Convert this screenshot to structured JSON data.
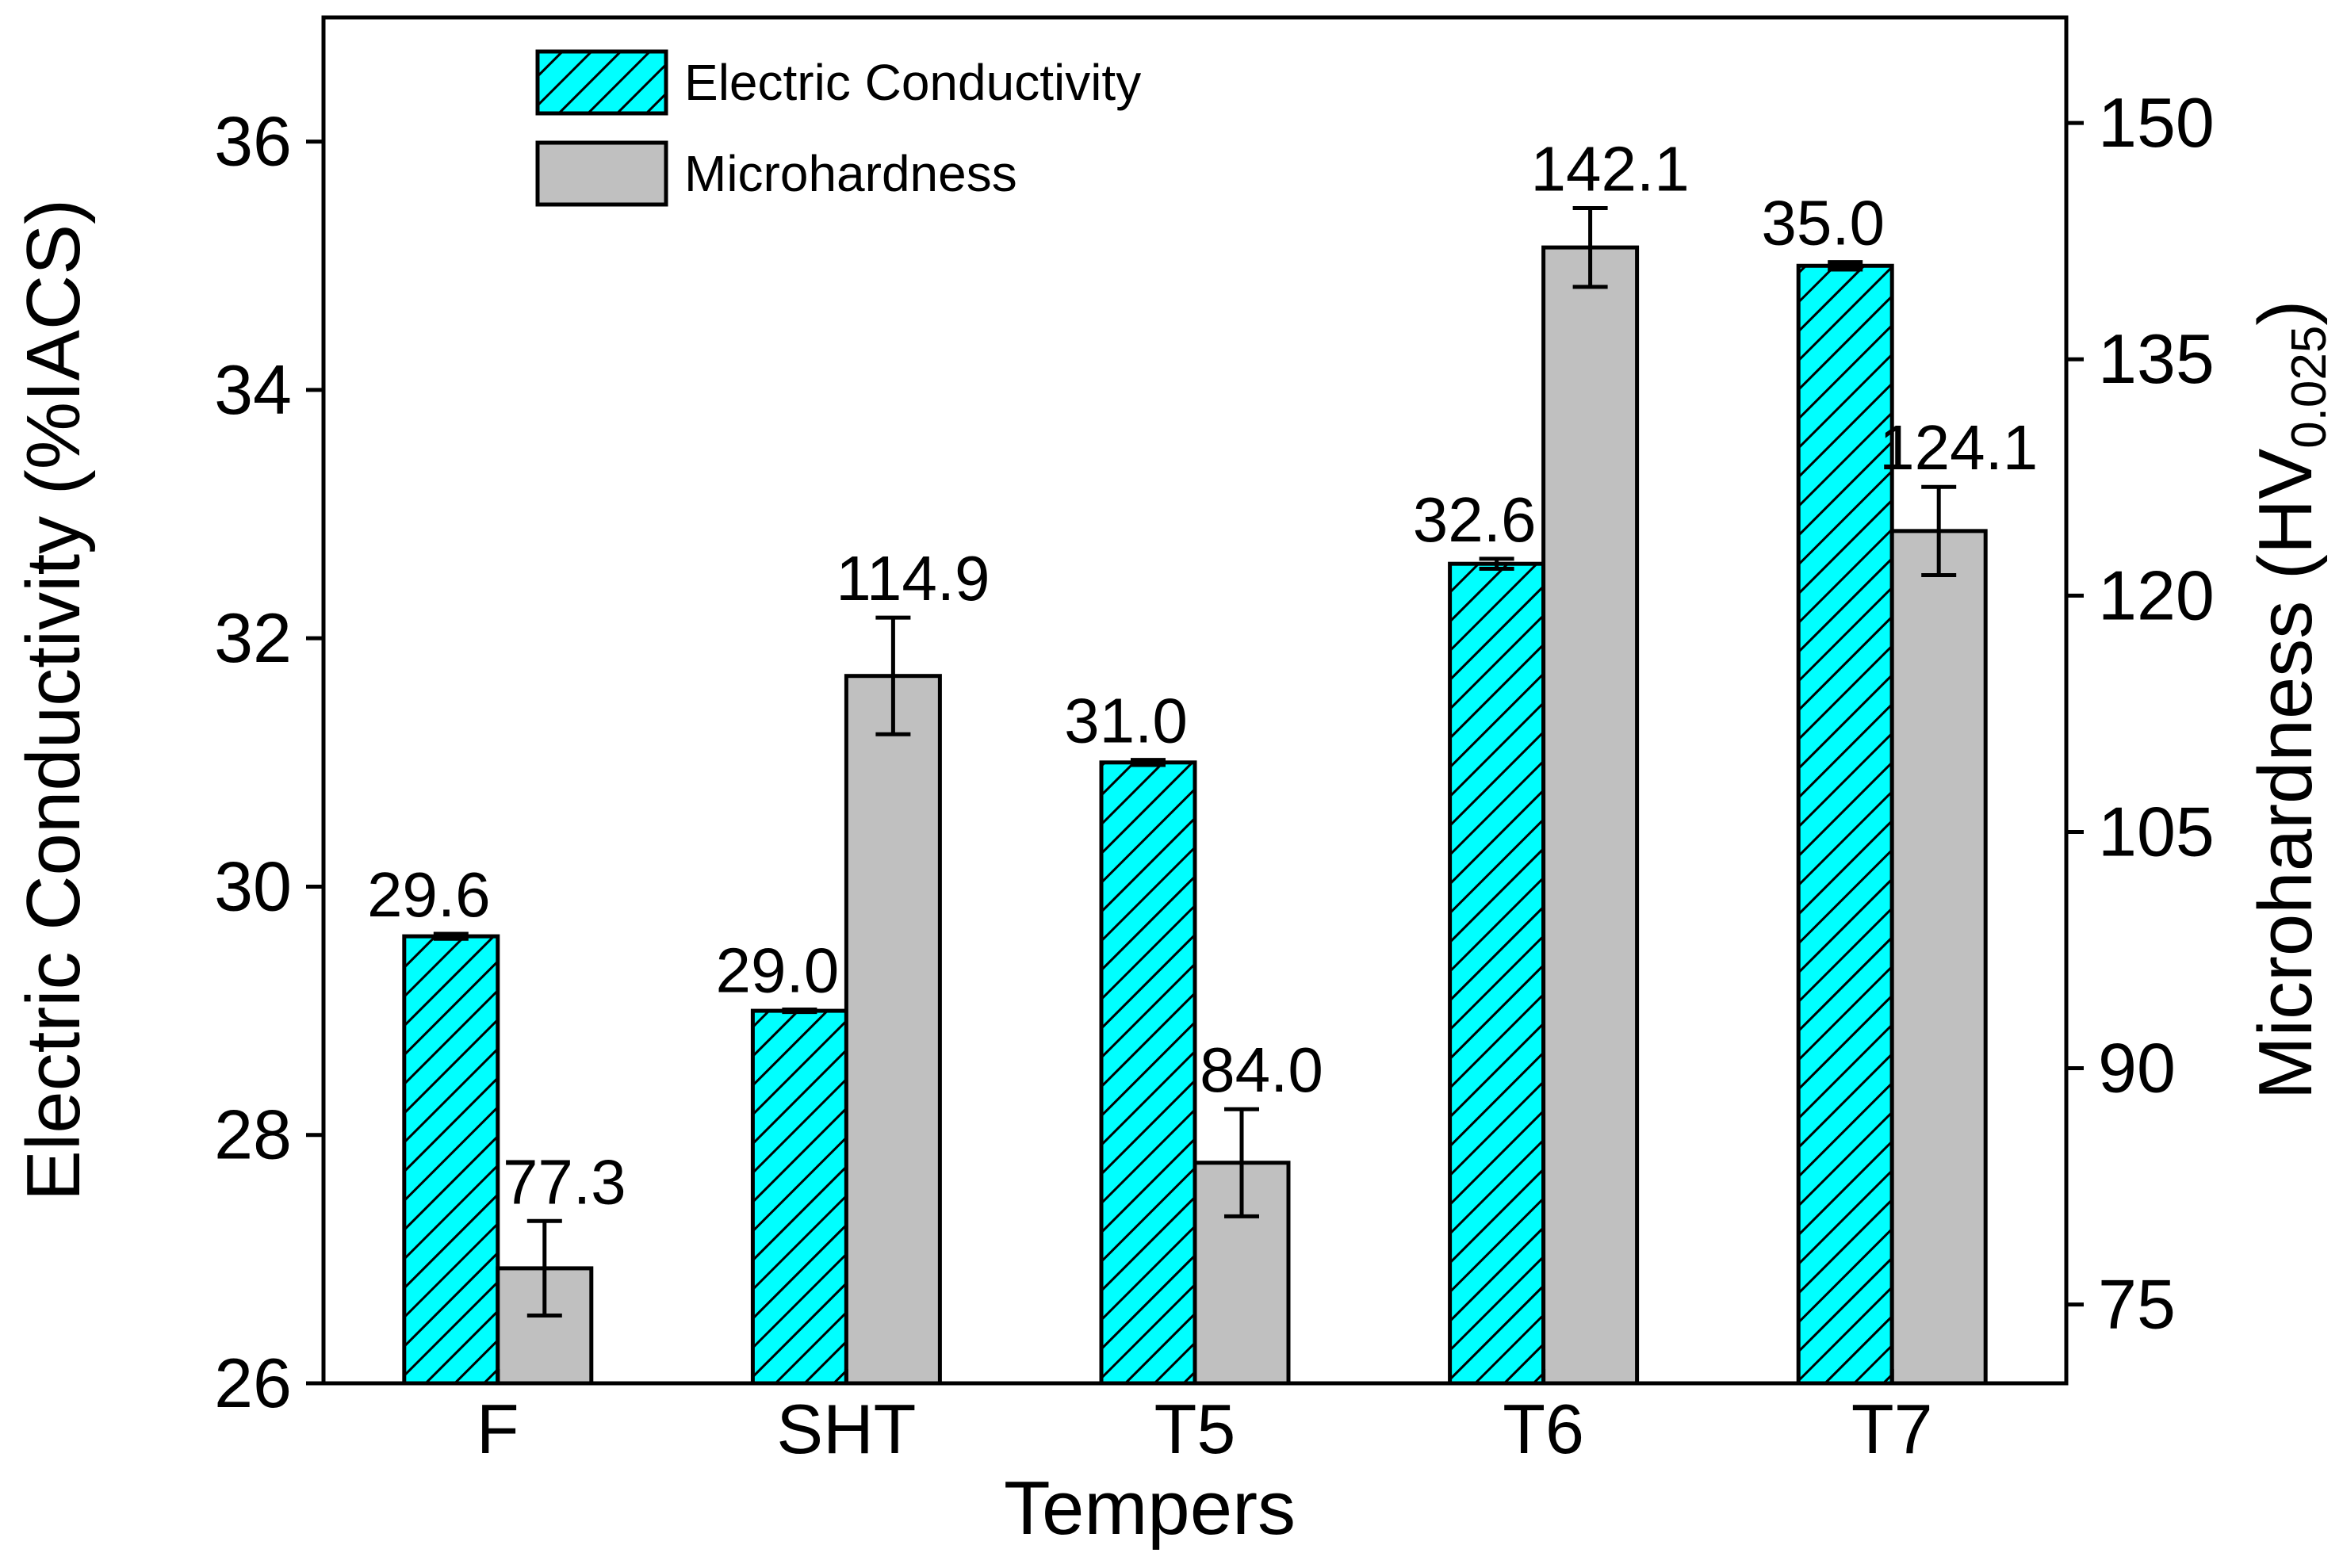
{
  "chart_data": {
    "type": "bar",
    "title": "",
    "xlabel": "Tempers",
    "ylabel": "Electric Conductivity (%IACS)",
    "y2label": {
      "main": "Microhardness (HV",
      "sub": "0.025",
      "close": ")"
    },
    "categories": [
      "F",
      "SHT",
      "T5",
      "T6",
      "T7"
    ],
    "ylim": [
      26,
      37
    ],
    "yticks": [
      26,
      28,
      30,
      32,
      34,
      36
    ],
    "y2lim": [
      70,
      156.7
    ],
    "y2ticks": [
      75,
      90,
      105,
      120,
      135,
      150
    ],
    "legend_position": "top-left",
    "series": [
      {
        "name": "Electric Conductivity",
        "axis": "left",
        "fill": "hatched",
        "color": "#00ffff",
        "values": [
          29.6,
          29.0,
          31.0,
          32.6,
          35.0
        ],
        "labels": [
          "29.6",
          "29.0",
          "31.0",
          "32.6",
          "35.0"
        ],
        "errors": [
          0.02,
          0.01,
          0.02,
          0.04,
          0.03
        ]
      },
      {
        "name": "Microhardness",
        "axis": "right",
        "fill": "solid",
        "color": "#c0c0c0",
        "values": [
          77.3,
          114.9,
          84.0,
          142.1,
          124.1
        ],
        "labels": [
          "77.3",
          "114.9",
          "84.0",
          "142.1",
          "124.1"
        ],
        "errors": [
          3.0,
          3.7,
          3.4,
          2.5,
          2.8
        ]
      }
    ]
  }
}
